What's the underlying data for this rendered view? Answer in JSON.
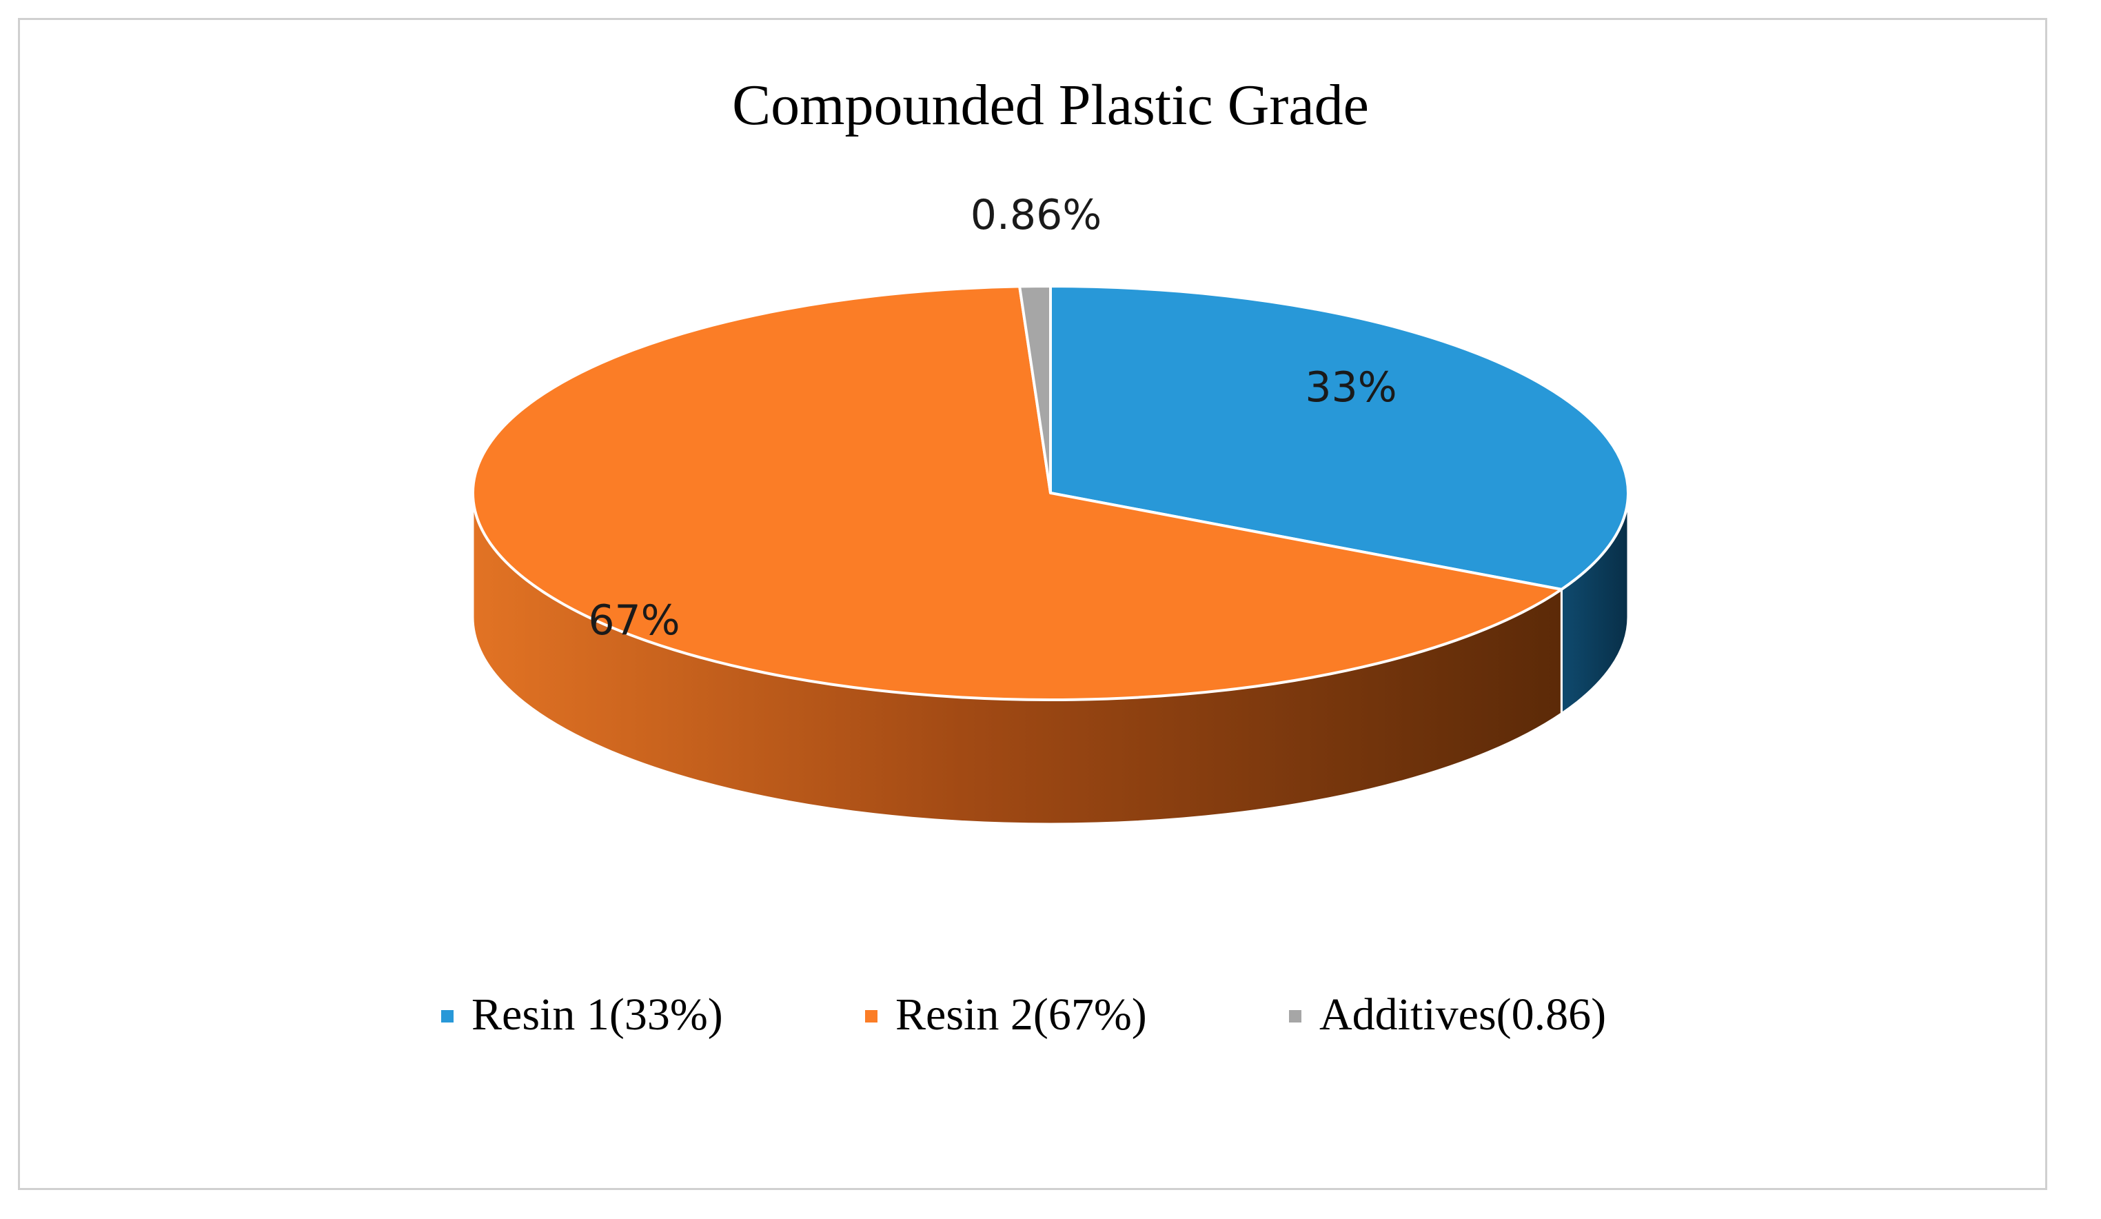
{
  "chart_data": {
    "type": "pie",
    "title": "Compounded Plastic Grade",
    "style": "3d",
    "slices": [
      {
        "legend": "Resin 1(33%)",
        "label": "33%",
        "value": 33,
        "color": "#2898d8",
        "side_color_light": "#16608c",
        "side_color_dark": "#0b3a57"
      },
      {
        "legend": "Resin 2(67%)",
        "label": "67%",
        "value": 67,
        "color": "#fb7d26",
        "side_color_light": "#d9621a",
        "side_color_dark": "#5a2a0a"
      },
      {
        "legend": "Additives(0.86)",
        "label": "0.86%",
        "value": 0.86,
        "color": "#a6a6a6",
        "side_color_light": "#8a8a8a",
        "side_color_dark": "#6a6a6a"
      }
    ],
    "legend_position": "bottom"
  }
}
